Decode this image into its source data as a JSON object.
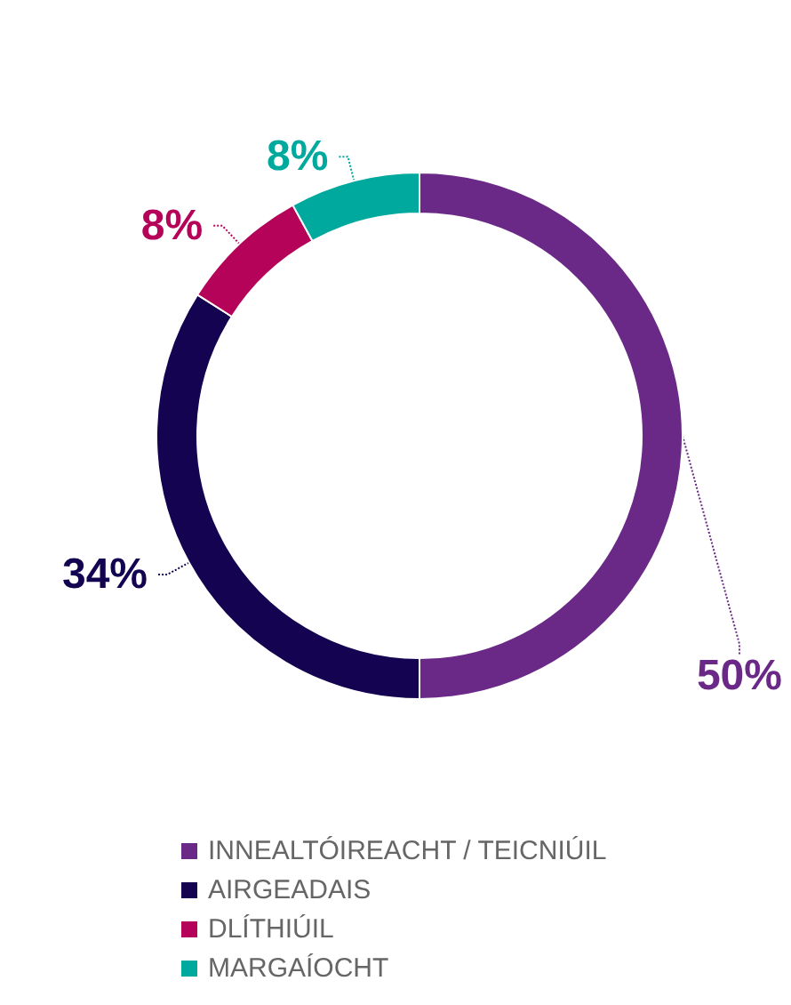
{
  "chart_data": {
    "type": "donut",
    "categories": [
      "INNEALTÓIREACHT / TEICNIÚIL",
      "AIRGEADAIS",
      "DLÍTHIÚIL",
      "MARGAÍOCHT"
    ],
    "values": [
      50,
      34,
      8,
      8
    ],
    "value_labels": [
      "50%",
      "34%",
      "8%",
      "8%"
    ],
    "colors": [
      "#6a2987",
      "#130350",
      "#b5035a",
      "#00a99d"
    ],
    "legend": "bottom"
  }
}
